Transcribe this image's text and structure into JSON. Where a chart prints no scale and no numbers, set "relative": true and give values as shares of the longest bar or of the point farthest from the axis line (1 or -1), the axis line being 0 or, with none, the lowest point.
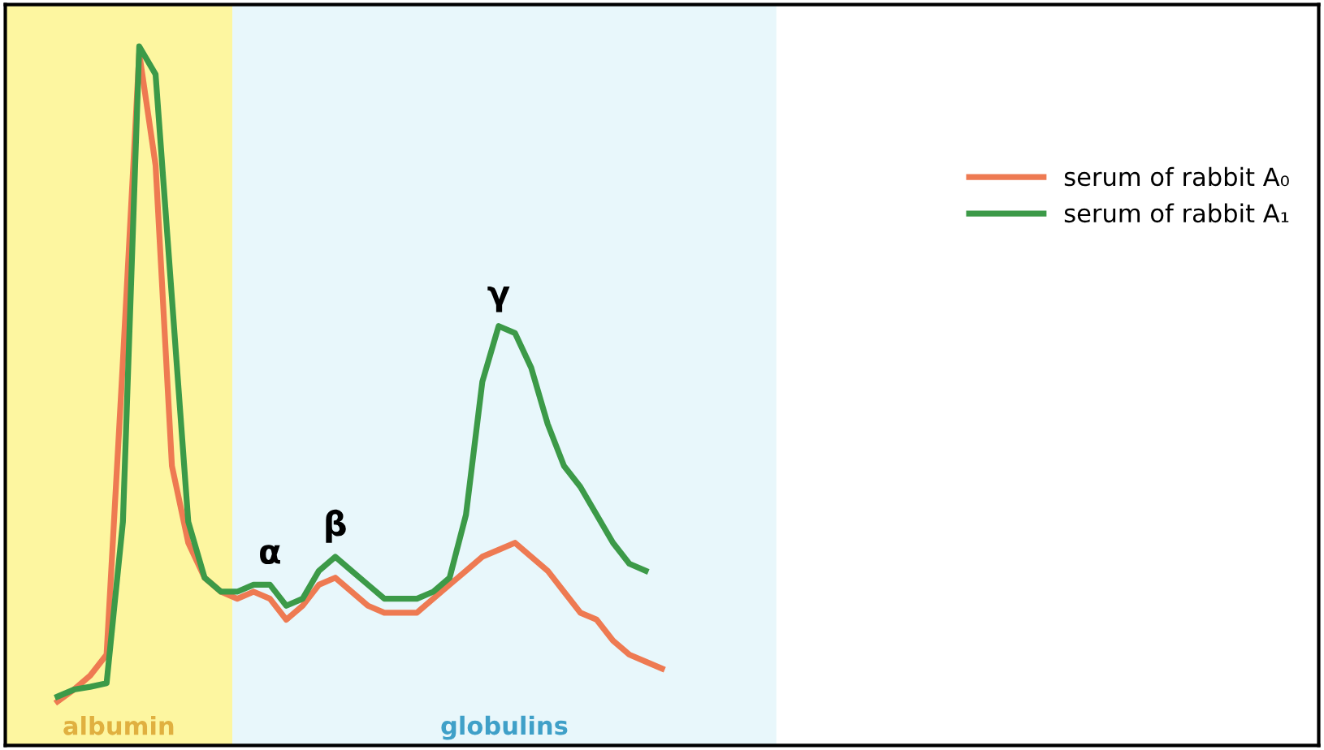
{
  "chart_data": {
    "type": "line",
    "relative": true,
    "categories": [
      null,
      null,
      null,
      null,
      null,
      null,
      null,
      null,
      null,
      null,
      null,
      null,
      null,
      null,
      null,
      null,
      null,
      null,
      null,
      null,
      null,
      null,
      null,
      null,
      null,
      null,
      null,
      null,
      null,
      null,
      null,
      null,
      null,
      null,
      null,
      null,
      null,
      null
    ],
    "series": [
      {
        "name": "serum of rabbit A₀",
        "color": "#ee7a52",
        "values": [
          0.063,
          0.08,
          0.1,
          0.13,
          0.55,
          0.99,
          0.83,
          0.4,
          0.29,
          0.24,
          0.22,
          0.21,
          0.22,
          0.21,
          0.18,
          0.2,
          0.23,
          0.24,
          0.22,
          0.2,
          0.19,
          0.19,
          0.19,
          0.21,
          0.23,
          0.25,
          0.27,
          0.28,
          0.29,
          0.27,
          0.25,
          0.22,
          0.19,
          0.18,
          0.15,
          0.13,
          0.12,
          0.11
        ]
      },
      {
        "name": "serum of rabbit A₁",
        "color": "#3c9a48",
        "values": [
          0.07,
          0.08,
          0.084,
          0.089,
          0.32,
          1.0,
          0.96,
          0.64,
          0.32,
          0.24,
          0.22,
          0.22,
          0.23,
          0.23,
          0.2,
          0.21,
          0.25,
          0.27,
          0.25,
          0.23,
          0.21,
          0.21,
          0.21,
          0.22,
          0.24,
          0.33,
          0.52,
          0.6,
          0.59,
          0.54,
          0.46,
          0.4,
          0.37,
          0.33,
          0.29,
          0.26,
          0.25,
          null
        ]
      }
    ],
    "annotations": [
      {
        "text": "α",
        "y": 0.23
      },
      {
        "text": "β",
        "y": 0.27
      },
      {
        "text": "γ",
        "y": 0.6
      },
      "albumin",
      "globulins"
    ],
    "legend": "right",
    "marker": "none",
    "line_style": "solid"
  }
}
